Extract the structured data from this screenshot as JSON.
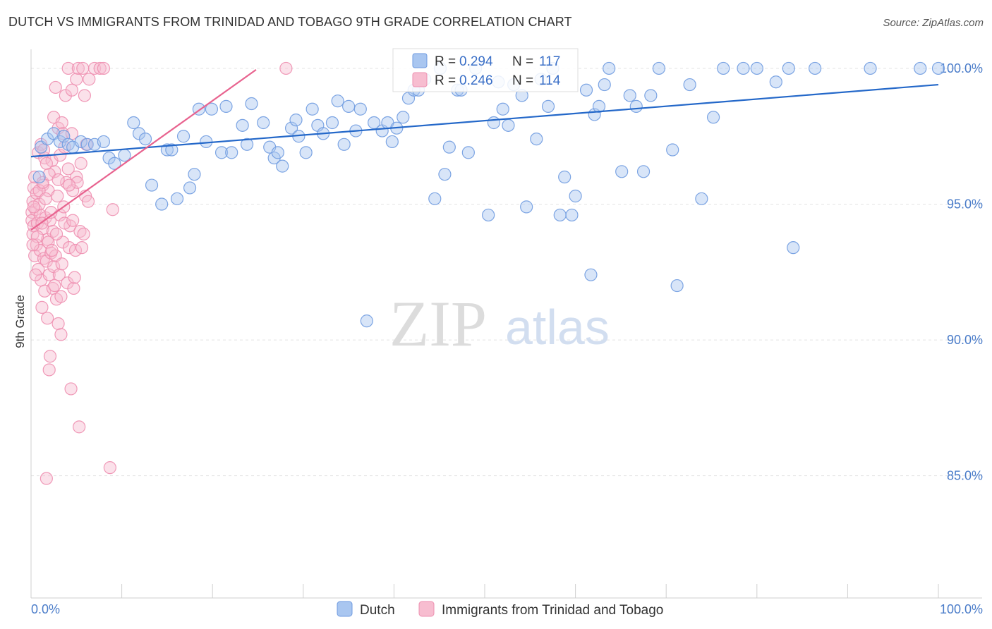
{
  "title": "DUTCH VS IMMIGRANTS FROM TRINIDAD AND TOBAGO 9TH GRADE CORRELATION CHART",
  "source": "Source: ZipAtlas.com",
  "watermark": {
    "zip": "ZIP",
    "atlas": "atlas"
  },
  "colors": {
    "dutch_fill": "#a9c6f0",
    "dutch_stroke": "#6f9be0",
    "dutch_line": "#2468c9",
    "tt_fill": "#f7bdd0",
    "tt_stroke": "#ee8fb0",
    "tt_line": "#e8638f",
    "tick_text": "#4a7cc9",
    "grid": "#e3e3e3"
  },
  "stats_legend": {
    "dutch": {
      "r_label": "R = ",
      "r_value": "0.294",
      "n_label": "N = ",
      "n_value": "117"
    },
    "tt": {
      "r_label": "R = ",
      "r_value": "0.246",
      "n_label": "N = ",
      "n_value": "114"
    }
  },
  "chart_data": {
    "type": "scatter",
    "title": "DUTCH VS IMMIGRANTS FROM TRINIDAD AND TOBAGO 9TH GRADE CORRELATION CHART",
    "xlabel": "",
    "ylabel": "9th Grade",
    "xlim": [
      0,
      100
    ],
    "ylim": [
      80.5,
      100.7
    ],
    "x_tick_labels": [
      {
        "value": 0,
        "label": "0.0%"
      },
      {
        "value": 100,
        "label": "100.0%"
      }
    ],
    "x_minor_ticks": [
      0,
      10,
      20,
      30,
      40,
      50,
      60,
      70,
      80,
      90,
      100
    ],
    "y_ticks": [
      {
        "value": 100,
        "label": "100.0%"
      },
      {
        "value": 95,
        "label": "95.0%"
      },
      {
        "value": 90,
        "label": "90.0%"
      },
      {
        "value": 85,
        "label": "85.0%"
      }
    ],
    "grid": true,
    "series": [
      {
        "name": "Dutch",
        "trend": {
          "x0": 0,
          "y0": 96.75,
          "x1": 100,
          "y1": 99.4
        },
        "points": [
          [
            0.9,
            96.0
          ],
          [
            1.1,
            97.1
          ],
          [
            1.8,
            97.4
          ],
          [
            2.5,
            97.6
          ],
          [
            3.2,
            97.3
          ],
          [
            3.6,
            97.5
          ],
          [
            4.1,
            97.2
          ],
          [
            4.6,
            97.1
          ],
          [
            5.5,
            97.3
          ],
          [
            6.2,
            97.2
          ],
          [
            7.0,
            97.2
          ],
          [
            8.0,
            97.3
          ],
          [
            8.6,
            96.7
          ],
          [
            9.2,
            96.5
          ],
          [
            10.3,
            96.8
          ],
          [
            11.3,
            98.0
          ],
          [
            11.9,
            97.6
          ],
          [
            12.6,
            97.4
          ],
          [
            13.3,
            95.7
          ],
          [
            14.4,
            95.0
          ],
          [
            15.0,
            97.0
          ],
          [
            15.5,
            97.0
          ],
          [
            16.1,
            95.2
          ],
          [
            16.8,
            97.5
          ],
          [
            17.5,
            95.6
          ],
          [
            18.0,
            96.1
          ],
          [
            18.5,
            98.5
          ],
          [
            19.3,
            97.3
          ],
          [
            19.9,
            98.5
          ],
          [
            21.0,
            96.9
          ],
          [
            21.5,
            98.6
          ],
          [
            22.1,
            96.9
          ],
          [
            23.3,
            97.9
          ],
          [
            23.8,
            97.2
          ],
          [
            24.3,
            98.7
          ],
          [
            25.6,
            98.0
          ],
          [
            26.3,
            97.1
          ],
          [
            26.8,
            96.7
          ],
          [
            27.2,
            96.9
          ],
          [
            27.7,
            96.4
          ],
          [
            28.7,
            97.8
          ],
          [
            29.2,
            98.1
          ],
          [
            29.5,
            97.5
          ],
          [
            30.3,
            96.9
          ],
          [
            31.0,
            98.5
          ],
          [
            31.6,
            97.9
          ],
          [
            32.2,
            97.6
          ],
          [
            33.2,
            98.0
          ],
          [
            33.8,
            98.8
          ],
          [
            34.5,
            97.2
          ],
          [
            35.0,
            98.6
          ],
          [
            35.8,
            97.7
          ],
          [
            36.3,
            98.5
          ],
          [
            37.0,
            90.7
          ],
          [
            37.8,
            98.0
          ],
          [
            38.7,
            97.7
          ],
          [
            39.3,
            98.0
          ],
          [
            39.8,
            97.3
          ],
          [
            40.3,
            97.8
          ],
          [
            41.0,
            98.2
          ],
          [
            41.6,
            98.9
          ],
          [
            42.2,
            99.2
          ],
          [
            42.7,
            99.2
          ],
          [
            43.4,
            99.6
          ],
          [
            44.5,
            95.2
          ],
          [
            45.1,
            100.0
          ],
          [
            45.6,
            96.1
          ],
          [
            46.1,
            97.1
          ],
          [
            47.0,
            99.2
          ],
          [
            47.4,
            99.2
          ],
          [
            48.2,
            96.9
          ],
          [
            49.0,
            100.0
          ],
          [
            50.4,
            94.6
          ],
          [
            51.0,
            98.0
          ],
          [
            51.5,
            99.5
          ],
          [
            52.0,
            98.5
          ],
          [
            52.6,
            97.9
          ],
          [
            53.2,
            99.4
          ],
          [
            54.1,
            99.0
          ],
          [
            54.6,
            94.9
          ],
          [
            55.7,
            97.4
          ],
          [
            56.2,
            99.6
          ],
          [
            57.0,
            98.6
          ],
          [
            57.5,
            100.0
          ],
          [
            58.3,
            94.6
          ],
          [
            58.8,
            96.0
          ],
          [
            59.6,
            94.6
          ],
          [
            60.0,
            95.3
          ],
          [
            61.2,
            99.2
          ],
          [
            61.7,
            92.4
          ],
          [
            62.1,
            98.3
          ],
          [
            62.6,
            98.6
          ],
          [
            63.2,
            99.4
          ],
          [
            63.7,
            100.0
          ],
          [
            65.1,
            96.2
          ],
          [
            66.0,
            99.0
          ],
          [
            66.7,
            98.6
          ],
          [
            67.5,
            96.2
          ],
          [
            68.3,
            99.0
          ],
          [
            69.2,
            100.0
          ],
          [
            70.7,
            97.0
          ],
          [
            71.2,
            92.0
          ],
          [
            72.6,
            99.4
          ],
          [
            73.9,
            95.2
          ],
          [
            75.2,
            98.2
          ],
          [
            76.3,
            100.0
          ],
          [
            78.5,
            100.0
          ],
          [
            80.0,
            100.0
          ],
          [
            82.1,
            99.5
          ],
          [
            83.5,
            100.0
          ],
          [
            84.0,
            93.4
          ],
          [
            86.4,
            100.0
          ],
          [
            92.5,
            100.0
          ],
          [
            98.0,
            100.0
          ],
          [
            100.0,
            100.0
          ]
        ]
      },
      {
        "name": "Immigrants from Trinidad and Tobago",
        "trend": {
          "x0": 0,
          "y0": 94.05,
          "x1": 24.8,
          "y1": 99.95
        },
        "points": [
          [
            0.1,
            94.7
          ],
          [
            0.1,
            94.4
          ],
          [
            0.2,
            95.1
          ],
          [
            0.2,
            93.9
          ],
          [
            0.3,
            95.6
          ],
          [
            0.3,
            94.2
          ],
          [
            0.4,
            96.0
          ],
          [
            0.4,
            93.1
          ],
          [
            0.5,
            94.8
          ],
          [
            0.6,
            95.4
          ],
          [
            0.6,
            93.5
          ],
          [
            0.7,
            94.3
          ],
          [
            0.8,
            96.9
          ],
          [
            0.8,
            92.6
          ],
          [
            0.9,
            95.0
          ],
          [
            1.0,
            94.6
          ],
          [
            1.0,
            93.3
          ],
          [
            1.1,
            97.2
          ],
          [
            1.1,
            92.2
          ],
          [
            1.2,
            91.2
          ],
          [
            1.3,
            95.7
          ],
          [
            1.3,
            94.1
          ],
          [
            1.4,
            93.0
          ],
          [
            1.5,
            96.7
          ],
          [
            1.5,
            91.8
          ],
          [
            1.6,
            94.5
          ],
          [
            1.7,
            92.9
          ],
          [
            1.7,
            84.9
          ],
          [
            1.8,
            93.7
          ],
          [
            1.8,
            90.8
          ],
          [
            1.9,
            95.5
          ],
          [
            2.0,
            92.4
          ],
          [
            2.0,
            88.9
          ],
          [
            2.1,
            94.4
          ],
          [
            2.1,
            89.4
          ],
          [
            2.2,
            93.2
          ],
          [
            2.3,
            96.6
          ],
          [
            2.4,
            91.9
          ],
          [
            2.4,
            94.0
          ],
          [
            2.5,
            92.7
          ],
          [
            2.5,
            98.2
          ],
          [
            2.6,
            96.2
          ],
          [
            2.7,
            93.1
          ],
          [
            2.7,
            99.3
          ],
          [
            2.8,
            91.5
          ],
          [
            2.9,
            95.3
          ],
          [
            3.0,
            90.6
          ],
          [
            3.0,
            97.8
          ],
          [
            3.1,
            92.4
          ],
          [
            3.2,
            94.6
          ],
          [
            3.2,
            96.8
          ],
          [
            3.3,
            90.2
          ],
          [
            3.4,
            98.0
          ],
          [
            3.5,
            93.6
          ],
          [
            3.5,
            97.6
          ],
          [
            3.6,
            94.9
          ],
          [
            3.7,
            97.1
          ],
          [
            3.8,
            99.0
          ],
          [
            3.9,
            95.8
          ],
          [
            4.0,
            92.1
          ],
          [
            4.1,
            96.3
          ],
          [
            4.1,
            100.0
          ],
          [
            4.2,
            93.4
          ],
          [
            4.3,
            94.2
          ],
          [
            4.4,
            88.2
          ],
          [
            4.5,
            97.6
          ],
          [
            4.5,
            99.2
          ],
          [
            4.6,
            95.5
          ],
          [
            4.7,
            91.9
          ],
          [
            4.8,
            92.3
          ],
          [
            4.9,
            93.3
          ],
          [
            5.0,
            96.0
          ],
          [
            5.0,
            99.6
          ],
          [
            5.1,
            95.8
          ],
          [
            5.2,
            100.0
          ],
          [
            5.3,
            86.8
          ],
          [
            5.4,
            94.0
          ],
          [
            5.5,
            96.5
          ],
          [
            5.6,
            93.4
          ],
          [
            5.7,
            100.0
          ],
          [
            5.8,
            93.9
          ],
          [
            5.9,
            99.0
          ],
          [
            6.0,
            95.3
          ],
          [
            6.1,
            97.2
          ],
          [
            6.3,
            95.1
          ],
          [
            6.4,
            99.6
          ],
          [
            7.0,
            100.0
          ],
          [
            7.6,
            100.0
          ],
          [
            8.0,
            100.0
          ],
          [
            8.7,
            85.3
          ],
          [
            9.0,
            94.8
          ],
          [
            28.1,
            100.0
          ],
          [
            0.9,
            95.5
          ],
          [
            1.3,
            95.8
          ],
          [
            1.9,
            93.6
          ],
          [
            2.2,
            94.7
          ],
          [
            2.6,
            92.0
          ],
          [
            3.3,
            91.6
          ],
          [
            3.7,
            94.3
          ],
          [
            4.2,
            95.7
          ],
          [
            0.5,
            92.4
          ],
          [
            0.7,
            93.8
          ],
          [
            1.6,
            95.2
          ],
          [
            2.0,
            96.1
          ],
          [
            2.8,
            93.9
          ],
          [
            3.0,
            95.9
          ],
          [
            3.4,
            92.8
          ],
          [
            0.3,
            94.9
          ],
          [
            0.2,
            93.5
          ],
          [
            1.2,
            94.3
          ],
          [
            1.4,
            97.0
          ],
          [
            2.3,
            93.3
          ],
          [
            4.6,
            94.4
          ],
          [
            1.7,
            96.5
          ]
        ]
      }
    ],
    "legend": [
      {
        "label": "Dutch"
      },
      {
        "label": "Immigrants from Trinidad and Tobago"
      }
    ]
  }
}
